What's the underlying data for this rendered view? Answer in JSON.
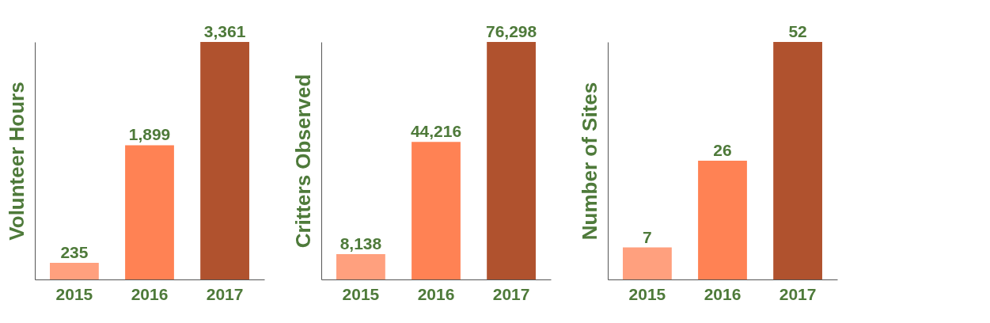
{
  "chart_data": [
    {
      "type": "bar",
      "ylabel": "Volunteer Hours",
      "categories": [
        "2015",
        "2016",
        "2017"
      ],
      "values": [
        235,
        1899,
        3361
      ],
      "value_labels": [
        "235",
        "1,899",
        "3,361"
      ],
      "colors": [
        "#ffa07e",
        "#ff8254",
        "#b0522e"
      ]
    },
    {
      "type": "bar",
      "ylabel": "Critters Observed",
      "categories": [
        "2015",
        "2016",
        "2017"
      ],
      "values": [
        8138,
        44216,
        76298
      ],
      "value_labels": [
        "8,138",
        "44,216",
        "76,298"
      ],
      "colors": [
        "#ffa07e",
        "#ff8254",
        "#b0522e"
      ]
    },
    {
      "type": "bar",
      "ylabel": "Number of Sites",
      "categories": [
        "2015",
        "2016",
        "2017"
      ],
      "values": [
        7,
        26,
        52
      ],
      "colors": [
        "#ffa07e",
        "#ff8254",
        "#b0522e"
      ],
      "data_labels": true
    }
  ]
}
